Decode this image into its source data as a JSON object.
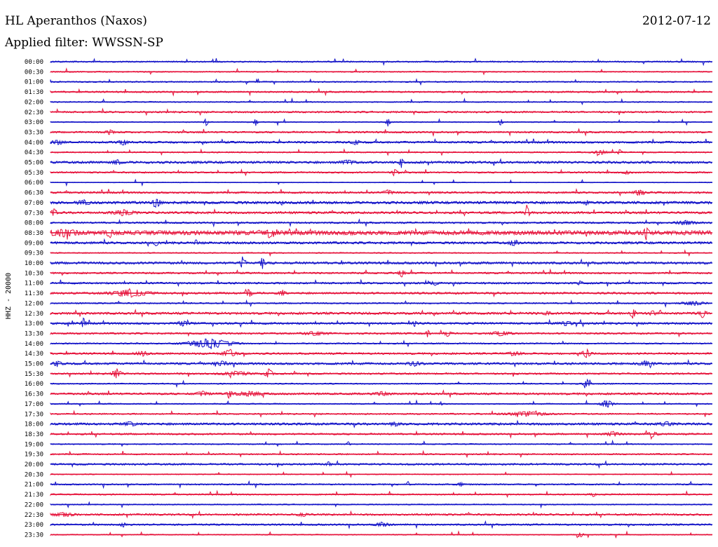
{
  "header": {
    "station": "HL Aperanthos (Naxos)",
    "date": "2012-07-12",
    "filter": "Applied filter: WWSSN-SP"
  },
  "chart_data": {
    "type": "line",
    "title": "HL Aperanthos (Naxos)",
    "ylabel": "HHZ - 20000",
    "colors": {
      "even": "#1414c8",
      "odd": "#e6143c"
    },
    "traces": [
      {
        "label": "00:00",
        "amp": 1.0,
        "events": []
      },
      {
        "label": "00:30",
        "amp": 0.8,
        "events": []
      },
      {
        "label": "01:00",
        "amp": 0.9,
        "events": []
      },
      {
        "label": "01:30",
        "amp": 1.1,
        "events": []
      },
      {
        "label": "02:00",
        "amp": 0.8,
        "events": []
      },
      {
        "label": "02:30",
        "amp": 1.2,
        "events": []
      },
      {
        "label": "03:00",
        "amp": 0.7,
        "events": [
          [
            0.235,
            7,
            5
          ],
          [
            0.31,
            7,
            5
          ],
          [
            0.51,
            9,
            5
          ],
          [
            0.68,
            7,
            5
          ]
        ]
      },
      {
        "label": "03:30",
        "amp": 1.2,
        "events": [
          [
            0.09,
            3,
            12
          ]
        ]
      },
      {
        "label": "04:00",
        "amp": 1.4,
        "events": [
          [
            0.01,
            3,
            18
          ],
          [
            0.11,
            4,
            14
          ],
          [
            0.46,
            4,
            12
          ]
        ]
      },
      {
        "label": "04:30",
        "amp": 0.9,
        "events": [
          [
            0.83,
            3,
            20
          ],
          [
            0.86,
            4,
            6
          ]
        ]
      },
      {
        "label": "05:00",
        "amp": 1.6,
        "events": [
          [
            0.1,
            4,
            12
          ],
          [
            0.45,
            3,
            20
          ],
          [
            0.53,
            7,
            6
          ]
        ]
      },
      {
        "label": "05:30",
        "amp": 1.1,
        "events": [
          [
            0.52,
            5,
            10
          ],
          [
            0.87,
            3,
            8
          ]
        ]
      },
      {
        "label": "06:00",
        "amp": 0.5,
        "events": []
      },
      {
        "label": "06:30",
        "amp": 1.3,
        "events": [
          [
            0.51,
            4,
            12
          ],
          [
            0.89,
            5,
            14
          ]
        ]
      },
      {
        "label": "07:00",
        "amp": 1.8,
        "events": [
          [
            0.05,
            3,
            20
          ],
          [
            0.16,
            6,
            12
          ],
          [
            0.35,
            3,
            6
          ],
          [
            0.81,
            4,
            6
          ]
        ]
      },
      {
        "label": "07:30",
        "amp": 1.6,
        "events": [
          [
            0.005,
            6,
            8
          ],
          [
            0.11,
            4,
            30
          ],
          [
            0.72,
            12,
            6
          ]
        ]
      },
      {
        "label": "08:00",
        "amp": 1.2,
        "events": [
          [
            0.96,
            3,
            30
          ]
        ]
      },
      {
        "label": "08:30",
        "amp": 3.0,
        "events": [
          [
            0.02,
            4,
            40
          ],
          [
            0.09,
            6,
            8
          ],
          [
            0.33,
            6,
            10
          ],
          [
            0.9,
            10,
            6
          ]
        ]
      },
      {
        "label": "09:00",
        "amp": 1.6,
        "events": [
          [
            0.16,
            6,
            5
          ],
          [
            0.22,
            5,
            4
          ],
          [
            0.7,
            5,
            12
          ]
        ]
      },
      {
        "label": "09:30",
        "amp": 0.8,
        "events": []
      },
      {
        "label": "10:00",
        "amp": 1.6,
        "events": [
          [
            0.29,
            9,
            6
          ],
          [
            0.32,
            9,
            6
          ]
        ]
      },
      {
        "label": "10:30",
        "amp": 1.2,
        "events": [
          [
            0.53,
            7,
            8
          ]
        ]
      },
      {
        "label": "11:00",
        "amp": 1.3,
        "events": [
          [
            0.58,
            3,
            10
          ],
          [
            0.8,
            3,
            8
          ]
        ]
      },
      {
        "label": "11:30",
        "amp": 1.4,
        "events": [
          [
            0.12,
            6,
            50
          ],
          [
            0.3,
            7,
            8
          ],
          [
            0.35,
            4,
            12
          ]
        ]
      },
      {
        "label": "12:00",
        "amp": 1.0,
        "events": [
          [
            0.97,
            3,
            30
          ]
        ]
      },
      {
        "label": "12:30",
        "amp": 1.6,
        "events": [
          [
            0.75,
            3,
            10
          ],
          [
            0.88,
            11,
            6
          ],
          [
            0.91,
            4,
            8
          ],
          [
            0.985,
            6,
            10
          ]
        ]
      },
      {
        "label": "13:00",
        "amp": 1.4,
        "events": [
          [
            0.05,
            8,
            6
          ],
          [
            0.2,
            3,
            20
          ],
          [
            0.55,
            4,
            6
          ],
          [
            0.78,
            3,
            20
          ]
        ]
      },
      {
        "label": "13:30",
        "amp": 1.2,
        "events": [
          [
            0.4,
            3,
            30
          ],
          [
            0.57,
            5,
            6
          ],
          [
            0.6,
            4,
            10
          ],
          [
            0.68,
            3,
            30
          ]
        ]
      },
      {
        "label": "14:00",
        "amp": 1.0,
        "events": [
          [
            0.24,
            8,
            60
          ]
        ]
      },
      {
        "label": "14:30",
        "amp": 1.3,
        "events": [
          [
            0.14,
            3,
            20
          ],
          [
            0.27,
            6,
            20
          ],
          [
            0.7,
            3,
            20
          ],
          [
            0.81,
            7,
            12
          ]
        ]
      },
      {
        "label": "15:00",
        "amp": 1.5,
        "events": [
          [
            0.01,
            4,
            10
          ],
          [
            0.26,
            3,
            20
          ],
          [
            0.55,
            3,
            20
          ],
          [
            0.9,
            4,
            20
          ]
        ]
      },
      {
        "label": "15:30",
        "amp": 1.2,
        "events": [
          [
            0.1,
            8,
            12
          ],
          [
            0.28,
            3,
            40
          ],
          [
            0.33,
            8,
            10
          ]
        ]
      },
      {
        "label": "16:00",
        "amp": 0.9,
        "events": [
          [
            0.81,
            7,
            10
          ]
        ]
      },
      {
        "label": "16:30",
        "amp": 1.4,
        "events": [
          [
            0.23,
            3,
            20
          ],
          [
            0.27,
            6,
            8
          ],
          [
            0.3,
            3,
            40
          ],
          [
            0.5,
            3,
            20
          ]
        ]
      },
      {
        "label": "17:00",
        "amp": 0.8,
        "events": [
          [
            0.59,
            3,
            5
          ],
          [
            0.84,
            7,
            16
          ]
        ]
      },
      {
        "label": "17:30",
        "amp": 1.0,
        "events": [
          [
            0.72,
            3,
            60
          ]
        ]
      },
      {
        "label": "18:00",
        "amp": 1.6,
        "events": [
          [
            0.12,
            3,
            20
          ],
          [
            0.52,
            3,
            12
          ],
          [
            0.93,
            3,
            20
          ]
        ]
      },
      {
        "label": "18:30",
        "amp": 1.2,
        "events": [
          [
            0.85,
            3,
            20
          ],
          [
            0.91,
            4,
            12
          ]
        ]
      },
      {
        "label": "19:00",
        "amp": 0.8,
        "events": [
          [
            0.45,
            5,
            4
          ]
        ]
      },
      {
        "label": "19:30",
        "amp": 1.0,
        "events": []
      },
      {
        "label": "20:00",
        "amp": 1.3,
        "events": [
          [
            0.42,
            3,
            8
          ]
        ]
      },
      {
        "label": "20:30",
        "amp": 0.7,
        "events": []
      },
      {
        "label": "21:00",
        "amp": 1.0,
        "events": [
          [
            0.54,
            5,
            4
          ],
          [
            0.62,
            3,
            8
          ]
        ]
      },
      {
        "label": "21:30",
        "amp": 1.0,
        "events": [
          [
            0.82,
            3,
            8
          ]
        ]
      },
      {
        "label": "22:00",
        "amp": 0.8,
        "events": []
      },
      {
        "label": "22:30",
        "amp": 1.3,
        "events": [
          [
            0.02,
            3,
            30
          ],
          [
            0.38,
            3,
            12
          ]
        ]
      },
      {
        "label": "23:00",
        "amp": 1.2,
        "events": [
          [
            0.11,
            3,
            10
          ],
          [
            0.5,
            3,
            20
          ]
        ]
      },
      {
        "label": "23:30",
        "amp": 0.7,
        "events": [
          [
            0.8,
            5,
            8
          ]
        ]
      }
    ]
  }
}
